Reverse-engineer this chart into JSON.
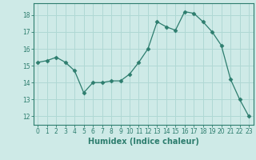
{
  "x": [
    0,
    1,
    2,
    3,
    4,
    5,
    6,
    7,
    8,
    9,
    10,
    11,
    12,
    13,
    14,
    15,
    16,
    17,
    18,
    19,
    20,
    21,
    22,
    23
  ],
  "y": [
    15.2,
    15.3,
    15.5,
    15.2,
    14.7,
    13.4,
    14.0,
    14.0,
    14.1,
    14.1,
    14.5,
    15.2,
    16.0,
    17.6,
    17.3,
    17.1,
    18.2,
    18.1,
    17.6,
    17.0,
    16.2,
    14.2,
    13.0,
    12.0
  ],
  "xlabel": "Humidex (Indice chaleur)",
  "line_color": "#2d7d6e",
  "marker": "D",
  "marker_size": 2.5,
  "bg_color": "#ceeae7",
  "grid_color": "#b0d8d4",
  "xlim": [
    -0.5,
    23.5
  ],
  "ylim": [
    11.5,
    18.7
  ],
  "yticks": [
    12,
    13,
    14,
    15,
    16,
    17,
    18
  ],
  "xticks": [
    0,
    1,
    2,
    3,
    4,
    5,
    6,
    7,
    8,
    9,
    10,
    11,
    12,
    13,
    14,
    15,
    16,
    17,
    18,
    19,
    20,
    21,
    22,
    23
  ],
  "tick_color": "#2d7d6e",
  "label_fontsize": 7,
  "tick_fontsize": 5.5
}
